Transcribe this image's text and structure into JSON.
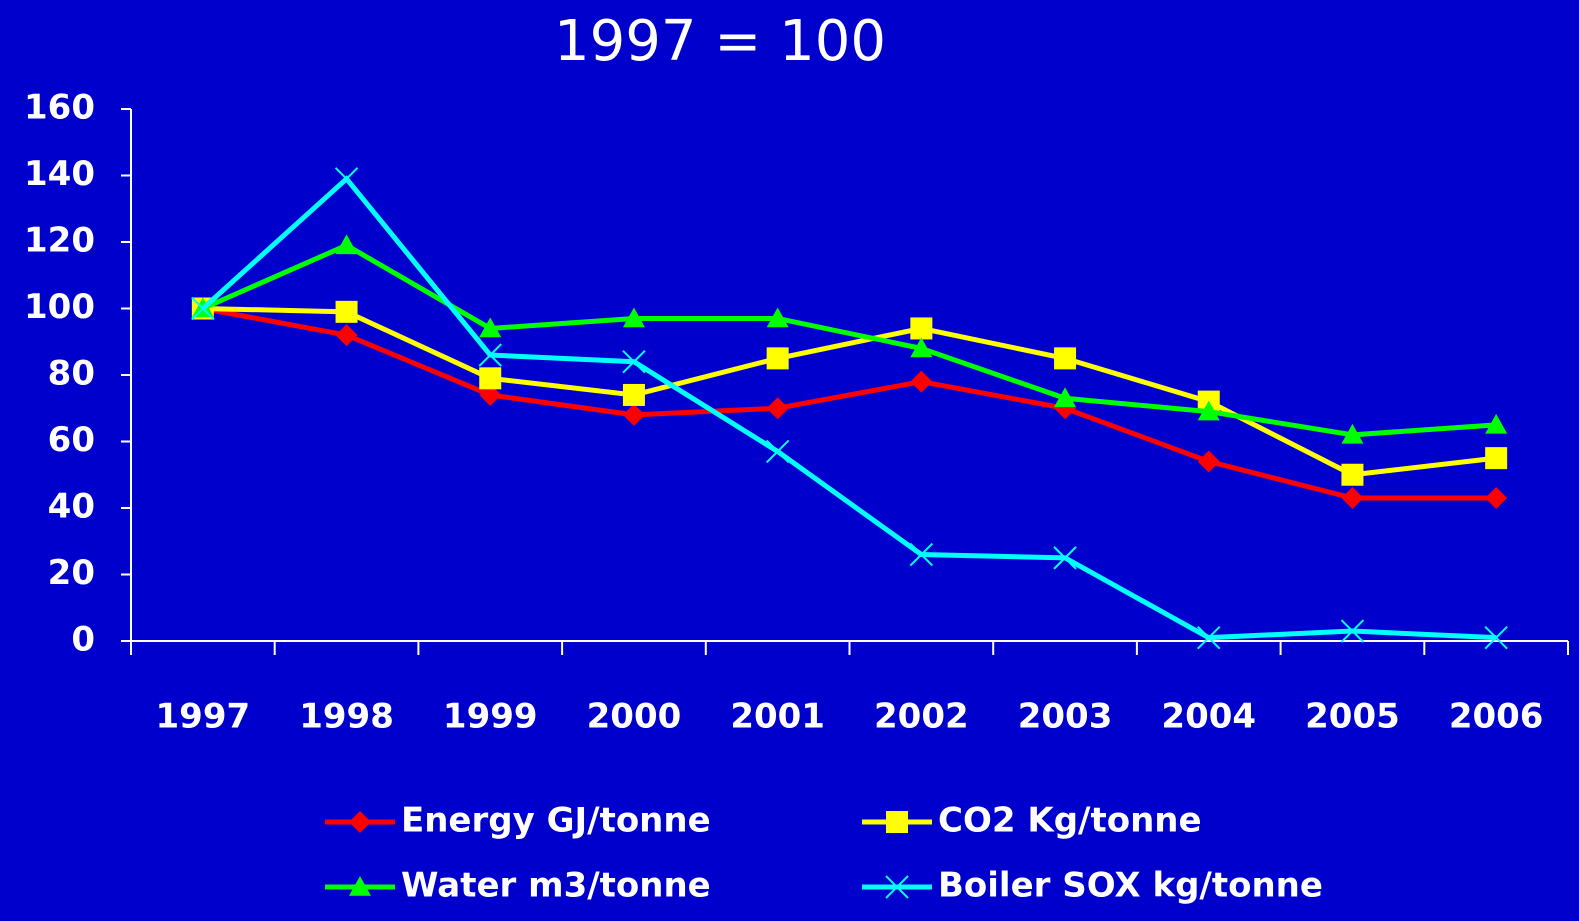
{
  "chart_data": {
    "type": "line",
    "title": "1997 = 100",
    "categories": [
      "1997",
      "1998",
      "1999",
      "2000",
      "2001",
      "2002",
      "2003",
      "2004",
      "2005",
      "2006"
    ],
    "ylim": [
      0,
      160
    ],
    "yticks": [
      0,
      20,
      40,
      60,
      80,
      100,
      120,
      140,
      160
    ],
    "series": [
      {
        "name": "Energy GJ/tonne",
        "color": "#ff0000",
        "marker": "diamond",
        "values": [
          100,
          92,
          74,
          68,
          70,
          78,
          70,
          54,
          43,
          43
        ]
      },
      {
        "name": "CO2 Kg/tonne",
        "color": "#ffff00",
        "marker": "square",
        "values": [
          100,
          99,
          79,
          74,
          85,
          94,
          85,
          72,
          50,
          55
        ]
      },
      {
        "name": "Water m3/tonne",
        "color": "#00ff00",
        "marker": "triangle",
        "values": [
          100,
          119,
          94,
          97,
          97,
          88,
          73,
          69,
          62,
          65
        ]
      },
      {
        "name": "Boiler SOX kg/tonne",
        "color": "#00ffff",
        "marker": "x",
        "values": [
          100,
          139,
          86,
          84,
          57,
          26,
          25,
          1,
          3,
          1
        ]
      }
    ]
  }
}
